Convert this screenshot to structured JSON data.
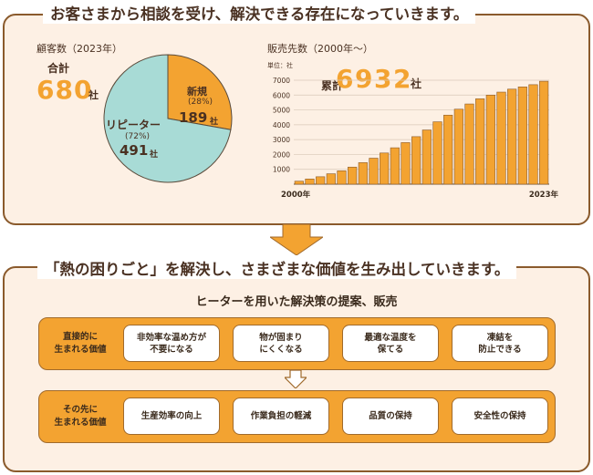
{
  "headlines": {
    "top": "お客さまから相談を受け、解決できる存在になっていきます。",
    "bottom": "「熱の困りごと」を解決し、さまざまな価値を生み出していきます。"
  },
  "customers": {
    "label": "顧客数（2023年）",
    "total_label": "合計",
    "total_value": "680",
    "unit": "社",
    "new": {
      "name": "新規",
      "pct": "(28%)",
      "count": "189",
      "unit": "社"
    },
    "repeat": {
      "name": "リピーター",
      "pct": "(72%)",
      "count": "491",
      "unit": "社"
    }
  },
  "sales": {
    "label": "販売先数（2000年～）",
    "unit_label": "単位：社",
    "cum_label": "累計",
    "cum_value": "6932",
    "cum_unit": "社"
  },
  "solution": {
    "title": "ヒーターを用いた解決策の提案、販売",
    "direct_label": [
      "直接的に",
      "生まれる価値"
    ],
    "direct_cards": [
      [
        "非効率な温め方が",
        "不要になる"
      ],
      [
        "物が固まり",
        "にくくなる"
      ],
      [
        "最適な温度を",
        "保てる"
      ],
      [
        "凍結を",
        "防止できる"
      ]
    ],
    "further_label": [
      "その先に",
      "生まれる価値"
    ],
    "further_cards": [
      [
        "生産効率の向上"
      ],
      [
        "作業負担の軽減"
      ],
      [
        "品質の保持"
      ],
      [
        "安全性の保持"
      ]
    ]
  },
  "colors": {
    "orange": "#f3a331",
    "teal": "#a8dbd6",
    "brown": "#8a5a2c",
    "panel_bg": "#fdf0e4"
  },
  "chart_data": [
    {
      "type": "pie",
      "title": "顧客数（2023年）",
      "slices": [
        {
          "name": "新規",
          "value": 189,
          "percent": 28,
          "color": "#f3a331"
        },
        {
          "name": "リピーター",
          "value": 491,
          "percent": 72,
          "color": "#a8dbd6"
        }
      ],
      "total": 680
    },
    {
      "type": "bar",
      "title": "販売先数（2000年～）",
      "ylabel": "単位：社",
      "ylim": [
        0,
        7000
      ],
      "yticks": [
        1000,
        2000,
        3000,
        4000,
        5000,
        6000,
        7000
      ],
      "x_start_label": "2000年",
      "x_end_label": "2023年",
      "categories": [
        "2000",
        "2001",
        "2002",
        "2003",
        "2004",
        "2005",
        "2006",
        "2007",
        "2008",
        "2009",
        "2010",
        "2011",
        "2012",
        "2013",
        "2014",
        "2015",
        "2016",
        "2017",
        "2018",
        "2019",
        "2020",
        "2021",
        "2022",
        "2023"
      ],
      "values": [
        200,
        350,
        500,
        700,
        900,
        1150,
        1450,
        1750,
        2100,
        2450,
        2800,
        3200,
        3650,
        4200,
        4650,
        5050,
        5400,
        5750,
        6000,
        6200,
        6400,
        6550,
        6700,
        6932
      ],
      "grid": true,
      "bar_color": "#f3a331"
    }
  ]
}
